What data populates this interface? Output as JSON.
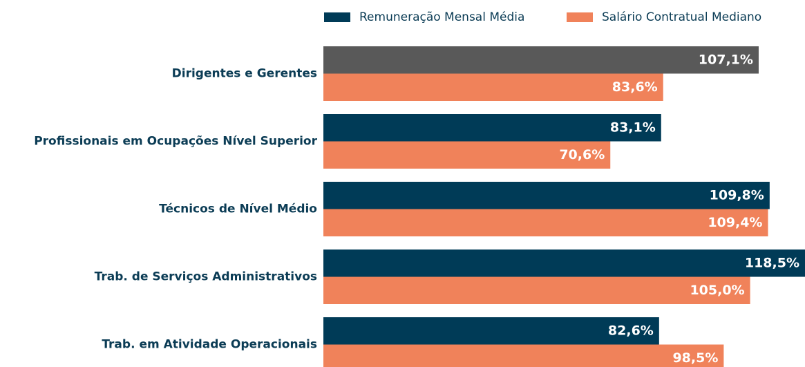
{
  "chart_data": {
    "type": "barh",
    "categories": [
      "Dirigentes e Gerentes",
      "Profissionais em Ocupações Nível Superior",
      "Técnicos de Nível Médio",
      "Trab. de Serviços Administrativos",
      "Trab. em Atividade Operacionais"
    ],
    "series": [
      {
        "name": "Remuneração Mensal Média",
        "color": "#003b57",
        "colors": [
          "#595959",
          "#003b57",
          "#003b57",
          "#003b57",
          "#003b57"
        ],
        "values": [
          107.1,
          83.1,
          109.8,
          118.5,
          82.6
        ],
        "value_labels": [
          "107,1%",
          "83,1%",
          "109,8%",
          "118,5%",
          "82,6%"
        ]
      },
      {
        "name": "Salário Contratual Mediano",
        "color": "#f0825a",
        "values": [
          83.6,
          70.6,
          109.4,
          105.0,
          98.5
        ],
        "value_labels": [
          "83,6%",
          "70,6%",
          "109,4%",
          "105,0%",
          "98,5%"
        ]
      }
    ]
  }
}
